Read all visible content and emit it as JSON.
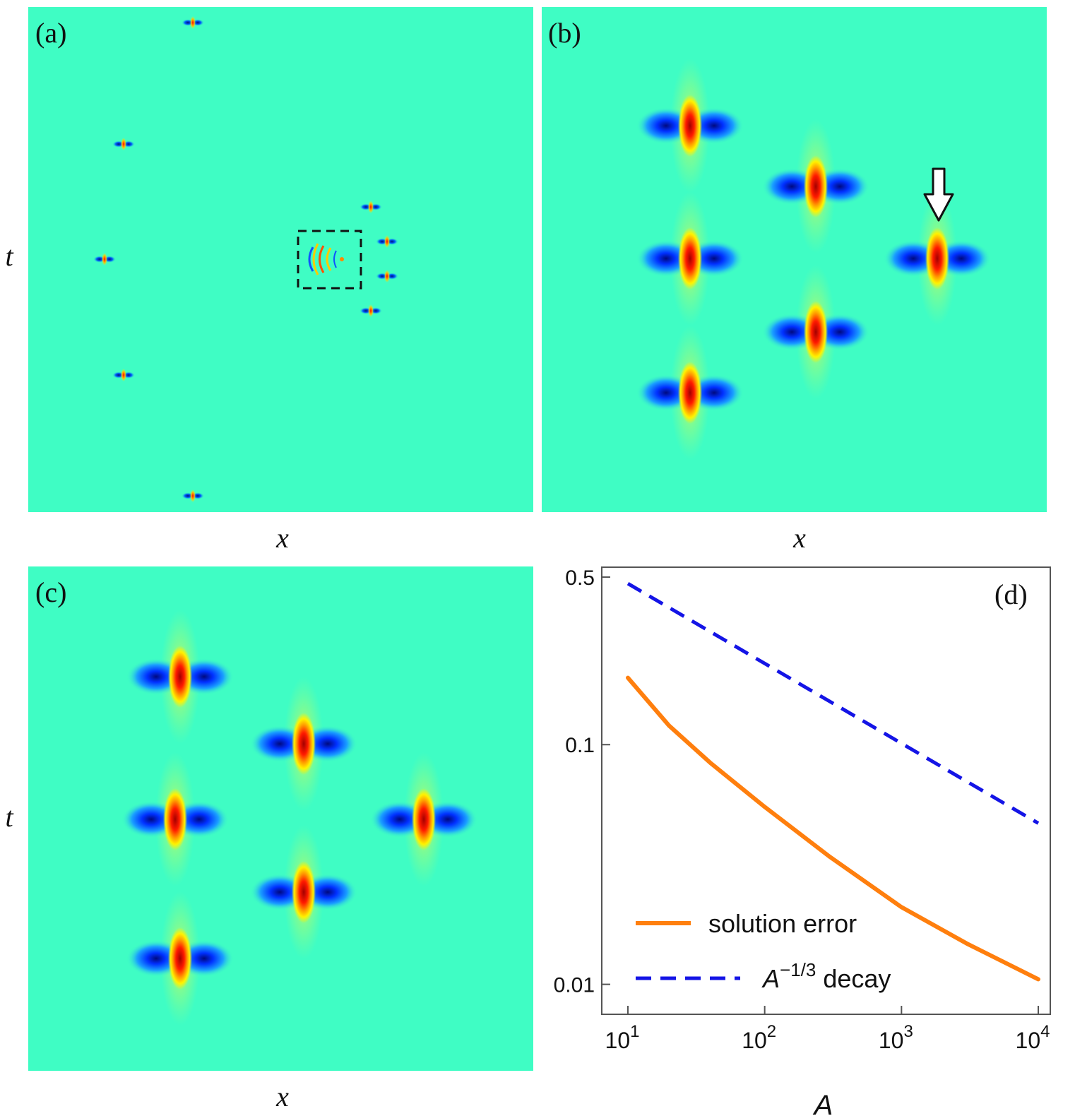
{
  "panels": {
    "a": {
      "label": "(a)",
      "xlabel": "x",
      "ylabel": "t"
    },
    "b": {
      "label": "(b)",
      "xlabel": "x"
    },
    "c": {
      "label": "(c)",
      "xlabel": "x",
      "ylabel": "t"
    },
    "d": {
      "label": "(d)"
    }
  },
  "colors": {
    "background": "#3ffdc4",
    "solution_error": "#ff7f0e",
    "decay": "#1414e6"
  },
  "chart_data": {
    "type": "line",
    "scale": "log-log",
    "xlabel": "A",
    "ylabel": "",
    "xlim": [
      10,
      10000
    ],
    "ylim": [
      0.0075,
      0.55
    ],
    "x_ticks": [
      {
        "value": 10,
        "base": "10",
        "exp": "1"
      },
      {
        "value": 100,
        "base": "10",
        "exp": "2"
      },
      {
        "value": 1000,
        "base": "10",
        "exp": "3"
      },
      {
        "value": 10000,
        "base": "10",
        "exp": "4"
      }
    ],
    "y_ticks": [
      {
        "value": 0.5,
        "label": "0.5"
      },
      {
        "value": 0.1,
        "label": "0.1"
      },
      {
        "value": 0.01,
        "label": "0.01"
      }
    ],
    "series": [
      {
        "name": "solution error",
        "style": "solid",
        "x": [
          10,
          20,
          40,
          100,
          300,
          1000,
          3000,
          10000
        ],
        "y": [
          0.19,
          0.12,
          0.084,
          0.055,
          0.034,
          0.021,
          0.0148,
          0.0105
        ]
      },
      {
        "name": "A^{-1/3} decay",
        "style": "dashed",
        "x": [
          10,
          10000
        ],
        "y": [
          0.47,
          0.047
        ]
      }
    ],
    "legend": [
      {
        "text": "solution error"
      },
      {
        "base": "A",
        "sup": "−1/3",
        "suffix": " decay"
      }
    ],
    "legend_position": "bottom-left"
  }
}
